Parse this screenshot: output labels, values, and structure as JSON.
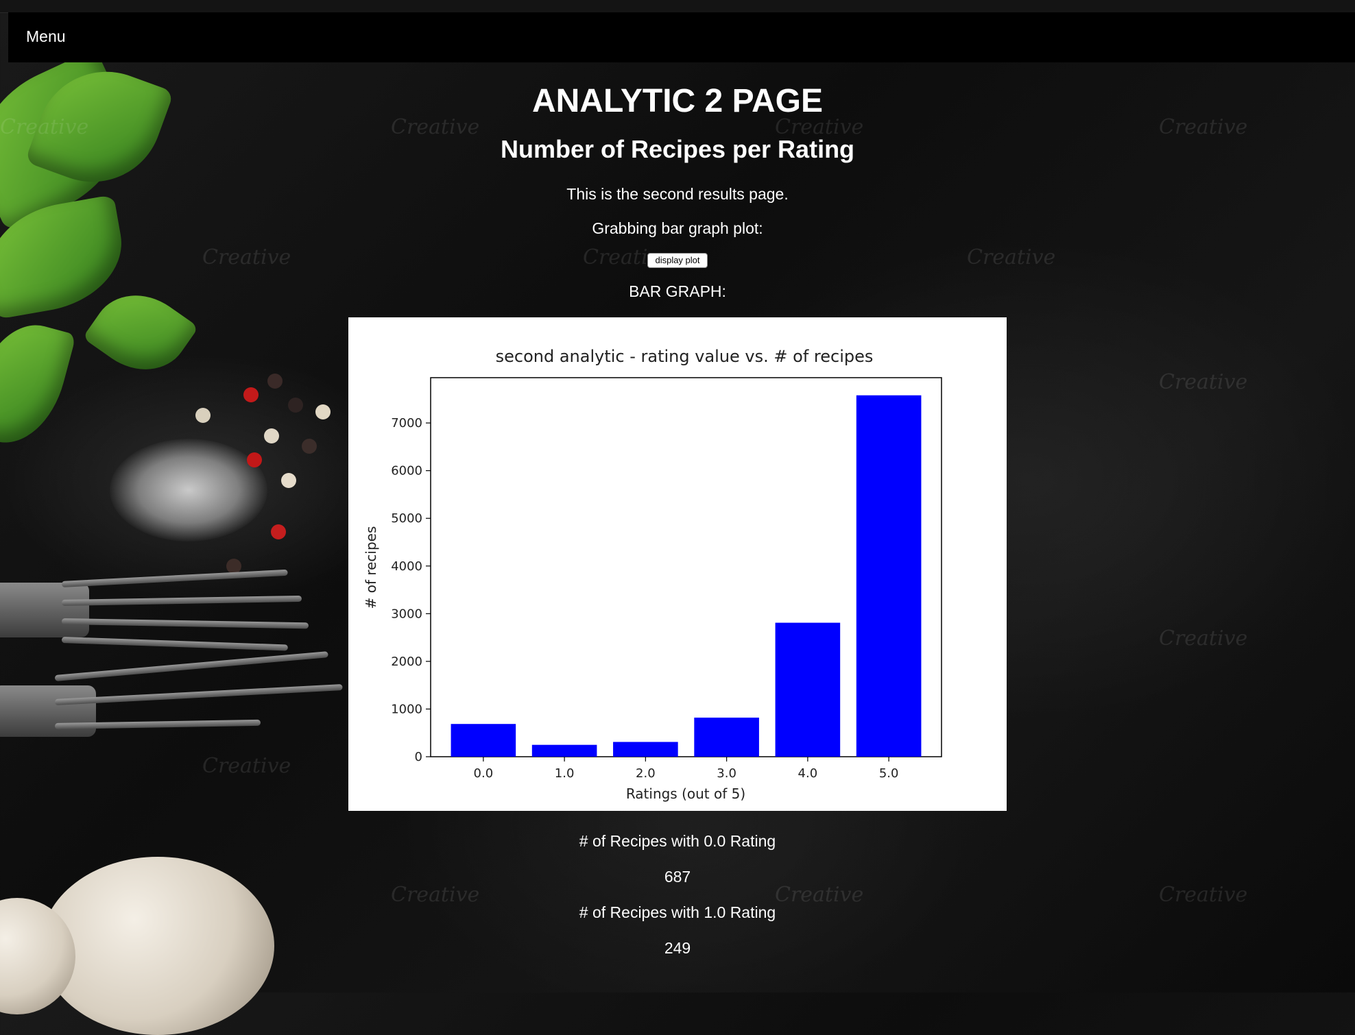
{
  "nav": {
    "menu_label": "Menu"
  },
  "header": {
    "title": "ANALYTIC 2 PAGE",
    "subtitle": "Number of Recipes per Rating"
  },
  "intro": {
    "text1": "This is the second results page.",
    "text2": "Grabbing bar graph plot:",
    "button_label": "display plot",
    "graph_heading": "BAR GRAPH:"
  },
  "chart_data": {
    "type": "bar",
    "title": "second analytic - rating value vs. # of recipes",
    "xlabel": "Ratings (out of 5)",
    "ylabel": "# of recipes",
    "categories": [
      "0.0",
      "1.0",
      "2.0",
      "3.0",
      "4.0",
      "5.0"
    ],
    "values": [
      687,
      249,
      310,
      820,
      2810,
      7580
    ],
    "ylim": [
      0,
      7950
    ],
    "yticks": [
      0,
      1000,
      2000,
      3000,
      4000,
      5000,
      6000,
      7000
    ],
    "bar_color": "#0000ff",
    "grid": false
  },
  "stats": [
    {
      "label": "# of Recipes with 0.0 Rating",
      "value": "687"
    },
    {
      "label": "# of Recipes with 1.0 Rating",
      "value": "249"
    }
  ],
  "watermark_text": "Creative"
}
